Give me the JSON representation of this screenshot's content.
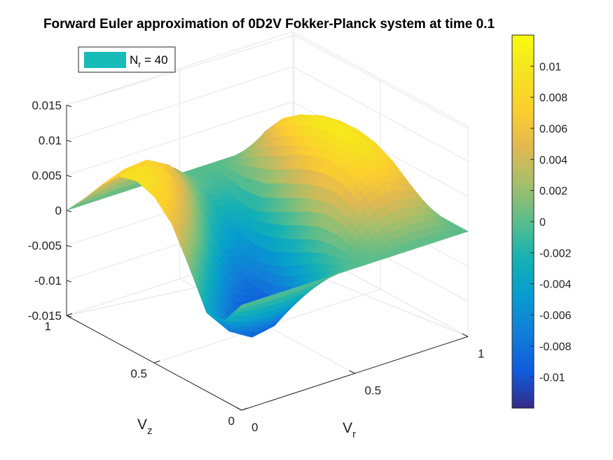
{
  "chart_data": {
    "type": "surface",
    "title": "Forward Euler approximation of 0D2V Fokker-Planck system at time 0.1",
    "xlabel": {
      "main": "V",
      "sub": "r"
    },
    "ylabel": {
      "main": "V",
      "sub": "z"
    },
    "legend": {
      "main": "N",
      "sub": "r",
      "suffix": " = 40",
      "color": "#17bcb8",
      "placement": "top-left"
    },
    "x": {
      "range": [
        0,
        1
      ],
      "tick_values": [
        0,
        0.5,
        1
      ],
      "tick_labels": [
        "0",
        "0.5",
        "1"
      ]
    },
    "y": {
      "range": [
        0,
        1
      ],
      "tick_values": [
        0,
        0.5,
        1
      ],
      "tick_labels": [
        "0",
        "0.5",
        "1"
      ]
    },
    "z": {
      "range": [
        -0.015,
        0.015
      ],
      "tick_values": [
        -0.015,
        -0.01,
        -0.005,
        0,
        0.005,
        0.01,
        0.015
      ],
      "tick_labels": [
        "-0.015",
        "-0.01",
        "-0.005",
        "0",
        "0.005",
        "0.01",
        "0.015"
      ]
    },
    "grid": true,
    "colorbar": {
      "range": [
        -0.012,
        0.012
      ],
      "tick_values": [
        -0.01,
        -0.008,
        -0.006,
        -0.004,
        -0.002,
        0,
        0.002,
        0.004,
        0.006,
        0.008,
        0.01
      ],
      "tick_labels": [
        "-0.01",
        "-0.008",
        "-0.006",
        "-0.004",
        "-0.002",
        "0",
        "0.002",
        "0.004",
        "0.006",
        "0.008",
        "0.01"
      ],
      "colormap": "parula"
    },
    "surface": {
      "vr": [
        0.0,
        0.1,
        0.2,
        0.3,
        0.4,
        0.5,
        0.6,
        0.7,
        0.8,
        0.9,
        1.0
      ],
      "vz": [
        0.0,
        0.1,
        0.2,
        0.3,
        0.4,
        0.5,
        0.6,
        0.7,
        0.8,
        0.9,
        1.0
      ],
      "values": [
        [
          0,
          0,
          0,
          0,
          0,
          0,
          0,
          0,
          0,
          0,
          0
        ],
        [
          -0.0036,
          -0.0047,
          -0.0051,
          -0.0045,
          -0.003,
          -0.001,
          0.0009,
          0.0023,
          0.0028,
          0.0022,
          0
        ],
        [
          -0.0038,
          -0.0075,
          -0.0094,
          -0.0088,
          -0.0062,
          -0.002,
          0.0024,
          0.0056,
          0.0066,
          0.005,
          0
        ],
        [
          0.0014,
          -0.0044,
          -0.009,
          -0.0108,
          -0.0088,
          -0.0036,
          0.0026,
          0.0075,
          0.0091,
          0.007,
          0
        ],
        [
          0.0062,
          0.001,
          -0.005,
          -0.0094,
          -0.0096,
          -0.0052,
          0.0016,
          0.0078,
          0.0104,
          0.0083,
          0
        ],
        [
          0.0087,
          0.0059,
          0.0006,
          -0.0056,
          -0.0085,
          -0.0063,
          0.0002,
          0.0072,
          0.0107,
          0.0088,
          0
        ],
        [
          0.0096,
          0.0086,
          0.0051,
          -0.0006,
          -0.0056,
          -0.0064,
          -0.0012,
          0.006,
          0.0103,
          0.0087,
          0
        ],
        [
          0.0089,
          0.0092,
          0.0078,
          0.0038,
          -0.0018,
          -0.005,
          -0.0024,
          0.0044,
          0.0093,
          0.0081,
          0
        ],
        [
          0.0063,
          0.0075,
          0.0078,
          0.006,
          0.0018,
          -0.0022,
          -0.0022,
          0.003,
          0.0074,
          0.0065,
          0
        ],
        [
          0.003,
          0.0041,
          0.005,
          0.005,
          0.0032,
          0.0003,
          -0.001,
          0.0014,
          0.0042,
          0.0038,
          0
        ],
        [
          0,
          0,
          0,
          0,
          0,
          0,
          0,
          0,
          0,
          0,
          0
        ]
      ]
    }
  }
}
